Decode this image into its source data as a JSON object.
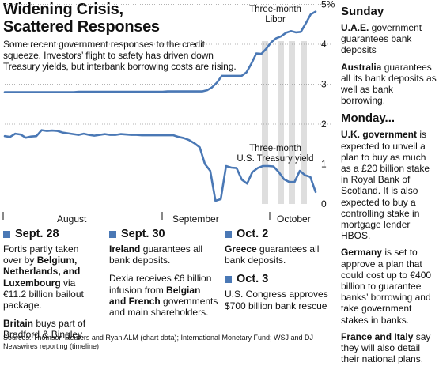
{
  "title": "Widening Crisis,\nScattered Responses",
  "intro": "Some recent government responses to the credit squeeze. Investors’ flight to safety has driven down Treasury yields, but interbank borrowing costs are rising.",
  "chart_data": {
    "type": "line",
    "ylim": [
      0,
      5
    ],
    "yticks": [
      "0",
      "1",
      "2",
      "3",
      "4",
      "5%"
    ],
    "xticks": [
      "August",
      "September",
      "October"
    ],
    "grid": true,
    "series": [
      {
        "name": "Three-month Libor",
        "color": "#4a78b5",
        "values": [
          2.8,
          2.8,
          2.8,
          2.8,
          2.8,
          2.8,
          2.8,
          2.8,
          2.8,
          2.8,
          2.8,
          2.8,
          2.8,
          2.8,
          2.8,
          2.81,
          2.81,
          2.81,
          2.81,
          2.81,
          2.81,
          2.81,
          2.81,
          2.81,
          2.81,
          2.81,
          2.81,
          2.81,
          2.81,
          2.81,
          2.81,
          2.81,
          2.81,
          2.82,
          2.82,
          2.82,
          2.82,
          2.82,
          2.82,
          2.82,
          2.82,
          2.85,
          2.92,
          3.04,
          3.21,
          3.21,
          3.21,
          3.21,
          3.21,
          3.3,
          3.52,
          3.77,
          3.76,
          3.89,
          4.05,
          4.15,
          4.2,
          4.29,
          4.33,
          4.3,
          4.31,
          4.52,
          4.75,
          4.82
        ]
      },
      {
        "name": "Three-month U.S. Treasury yield",
        "color": "#4a78b5",
        "values": [
          1.7,
          1.68,
          1.76,
          1.74,
          1.66,
          1.69,
          1.7,
          1.85,
          1.83,
          1.84,
          1.83,
          1.79,
          1.77,
          1.75,
          1.73,
          1.76,
          1.73,
          1.71,
          1.73,
          1.75,
          1.73,
          1.73,
          1.75,
          1.74,
          1.73,
          1.73,
          1.72,
          1.72,
          1.72,
          1.72,
          1.72,
          1.72,
          1.72,
          1.68,
          1.65,
          1.6,
          1.52,
          1.42,
          1.0,
          0.83,
          0.08,
          0.12,
          0.95,
          0.91,
          0.9,
          0.61,
          0.51,
          0.8,
          0.9,
          0.95,
          0.95,
          0.94,
          0.8,
          0.62,
          0.55,
          0.55,
          0.83,
          0.72,
          0.68,
          0.3
        ]
      }
    ],
    "annotations": [
      "Three-month\nLibor",
      "Three-month\nU.S. Treasury yield"
    ]
  },
  "events": [
    {
      "date": "Sept. 28",
      "paragraphs": [
        [
          {
            "t": "Fortis partly taken over by "
          },
          {
            "t": "Belgium, Netherlands, and Luxembourg",
            "b": true
          },
          {
            "t": " via €11.2 billion bailout package."
          }
        ],
        [
          {
            "t": "Britain",
            "b": true
          },
          {
            "t": " buys part of Bradford & Bingley."
          }
        ]
      ]
    },
    {
      "date": "Sept. 30",
      "paragraphs": [
        [
          {
            "t": "Ireland",
            "b": true
          },
          {
            "t": " guarantees all bank deposits."
          }
        ],
        [
          {
            "t": "Dexia receives €6 billion infusion from "
          },
          {
            "t": "Belgian and French",
            "b": true
          },
          {
            "t": " governments and main shareholders."
          }
        ]
      ]
    },
    {
      "date": "Oct. 2",
      "paragraphs": [
        [
          {
            "t": "Greece",
            "b": true
          },
          {
            "t": " guarantees all bank deposits."
          }
        ]
      ]
    },
    {
      "date": "Oct. 3",
      "paragraphs": [
        [
          {
            "t": "U.S. Congress approves $700 billion bank rescue"
          }
        ]
      ]
    }
  ],
  "sources": "Sources: Thomson Reuters and Ryan ALM (chart data); International Monetary Fund; WSJ and DJ Newswires reporting (timeline)",
  "sidebar": {
    "sunday": {
      "day": "Sunday",
      "items": [
        [
          {
            "t": "U.A.E.",
            "b": true
          },
          {
            "t": " government guarantees bank deposits"
          }
        ],
        [
          {
            "t": "Australia",
            "b": true
          },
          {
            "t": " guarantees all its bank deposits as well as bank borrowing."
          }
        ]
      ]
    },
    "monday": {
      "day": "Monday...",
      "items": [
        [
          {
            "t": "U.K. government",
            "b": true
          },
          {
            "t": " is expected to unveil a plan to buy as much as a £20 billion stake in Royal Bank of Scotland. It is also expected to buy a controlling stake in mortgage lender HBOS."
          }
        ],
        [
          {
            "t": "Germany",
            "b": true
          },
          {
            "t": " is set to approve a plan that could cost up to €400 billion to guarantee banks’ borrowing and take government stakes in banks."
          }
        ],
        [
          {
            "t": "France and Italy",
            "b": true
          },
          {
            "t": " say they will also detail their national plans."
          }
        ]
      ]
    }
  },
  "colors": {
    "line": "#4a78b5",
    "band": "#dedede",
    "grid": "#9a9a9a",
    "square": "#4a78b5"
  }
}
